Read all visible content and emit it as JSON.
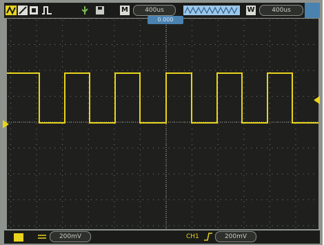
{
  "top_bar": {
    "mode_label": "M",
    "timebase_value": "400us",
    "window_label": "W",
    "window_value": "400us",
    "trigger_position": "0.000"
  },
  "bottom_bar": {
    "channel1_scale": "200mV",
    "trigger_channel": "CH1",
    "trigger_level": "200mV"
  },
  "colors": {
    "trace": "#e8d41c",
    "screen": "#1f201d",
    "bezel": "#8f938d",
    "grid": "#7c7f78",
    "accent": "#4a82b0"
  },
  "icons": [
    "run-stop-icon",
    "edge-icon",
    "memory-icon",
    "square-wave-icon",
    "usb-icon",
    "save-icon",
    "waveform-bar-icon",
    "trigger-edge-icon",
    "channel-marker-icon",
    "trigger-level-marker-icon"
  ]
}
